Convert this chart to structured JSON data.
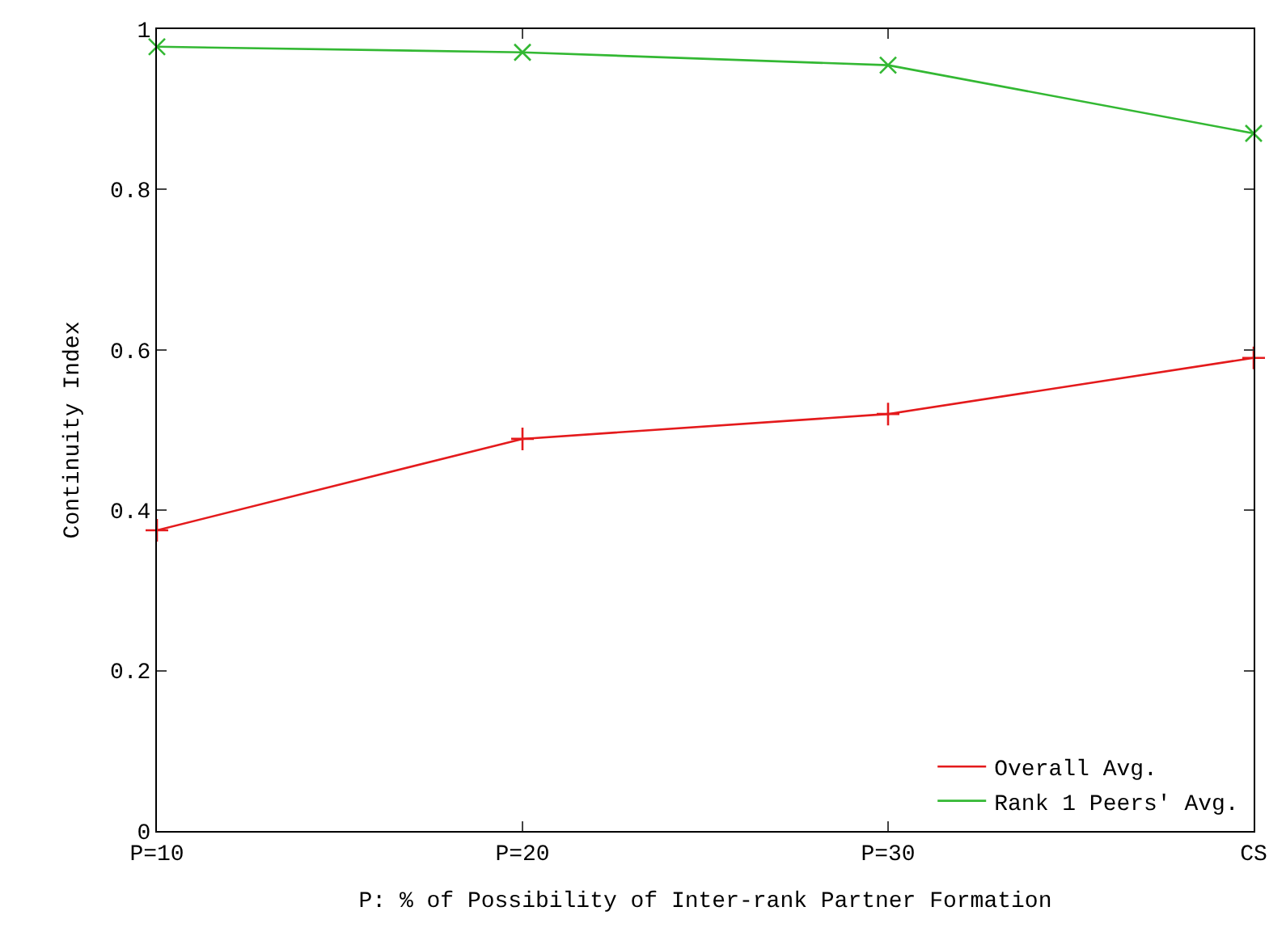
{
  "chart_data": {
    "type": "line",
    "xlabel": "P: % of Possibility of Inter-rank Partner Formation",
    "ylabel": "Continuity Index",
    "categories": [
      "P=10",
      "P=20",
      "P=30",
      "CS"
    ],
    "series": [
      {
        "name": "Overall Avg.",
        "color": "#e41a1c",
        "values": [
          0.375,
          0.489,
          0.52,
          0.59
        ],
        "marker": "cross"
      },
      {
        "name": "Rank 1 Peers' Avg.",
        "color": "#33b833",
        "values": [
          0.978,
          0.971,
          0.955,
          0.87
        ],
        "marker": "x"
      }
    ],
    "ylim": [
      0,
      1
    ],
    "yticks": [
      0,
      {
        "value": 0.2,
        "label": "0.2"
      },
      {
        "value": 0.4,
        "label": "0.4"
      },
      {
        "value": 0.6,
        "label": "0.6"
      },
      {
        "value": 0.8,
        "label": "0.8"
      },
      1
    ],
    "legend": "bottom right",
    "line_style": "solid"
  }
}
